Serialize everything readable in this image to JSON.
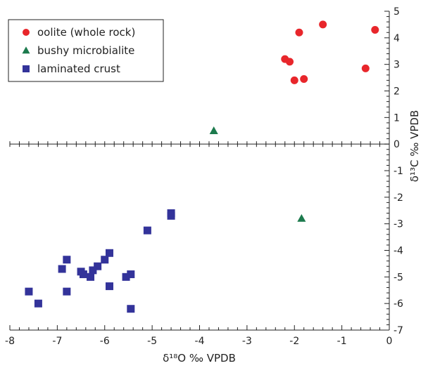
{
  "chart_data": {
    "type": "scatter",
    "title": "",
    "xlabel": "δ¹⁸O ‰ VPDB",
    "ylabel": "δ¹³C ‰ VPDB",
    "xlim": [
      -8,
      0
    ],
    "ylim": [
      -7,
      5
    ],
    "x_ticks": [
      -8,
      -7,
      -6,
      -5,
      -4,
      -3,
      -2,
      -1,
      0
    ],
    "y_ticks": [
      -7,
      -6,
      -5,
      -4,
      -3,
      -2,
      -1,
      0,
      1,
      2,
      3,
      4,
      5
    ],
    "x_axis_at_y": 0,
    "y_axis_at_x": 0,
    "grid": false,
    "legend_position": "top-left",
    "series": [
      {
        "name": "oolite (whole rock)",
        "marker": "circle",
        "color": "#e8262b",
        "points": [
          {
            "x": -1.4,
            "y": 4.5
          },
          {
            "x": -0.3,
            "y": 4.3
          },
          {
            "x": -1.9,
            "y": 4.2
          },
          {
            "x": -2.2,
            "y": 3.2
          },
          {
            "x": -2.1,
            "y": 3.1
          },
          {
            "x": -0.5,
            "y": 2.85
          },
          {
            "x": -1.8,
            "y": 2.45
          },
          {
            "x": -2.0,
            "y": 2.4
          }
        ]
      },
      {
        "name": "bushy microbialite",
        "marker": "triangle",
        "color": "#1c7a4d",
        "points": [
          {
            "x": -3.7,
            "y": 0.5
          },
          {
            "x": -1.85,
            "y": -2.8
          }
        ]
      },
      {
        "name": "laminated crust",
        "marker": "square",
        "color": "#33339a",
        "points": [
          {
            "x": -4.6,
            "y": -2.6
          },
          {
            "x": -4.6,
            "y": -2.7
          },
          {
            "x": -5.1,
            "y": -3.25
          },
          {
            "x": -5.9,
            "y": -4.1
          },
          {
            "x": -6.0,
            "y": -4.35
          },
          {
            "x": -6.8,
            "y": -4.35
          },
          {
            "x": -6.15,
            "y": -4.6
          },
          {
            "x": -6.9,
            "y": -4.7
          },
          {
            "x": -6.25,
            "y": -4.75
          },
          {
            "x": -6.5,
            "y": -4.8
          },
          {
            "x": -6.45,
            "y": -4.9
          },
          {
            "x": -5.45,
            "y": -4.9
          },
          {
            "x": -6.3,
            "y": -5.0
          },
          {
            "x": -5.55,
            "y": -5.0
          },
          {
            "x": -5.9,
            "y": -5.35
          },
          {
            "x": -7.6,
            "y": -5.55
          },
          {
            "x": -6.8,
            "y": -5.55
          },
          {
            "x": -7.4,
            "y": -6.0
          },
          {
            "x": -5.45,
            "y": -6.2
          }
        ]
      }
    ]
  }
}
